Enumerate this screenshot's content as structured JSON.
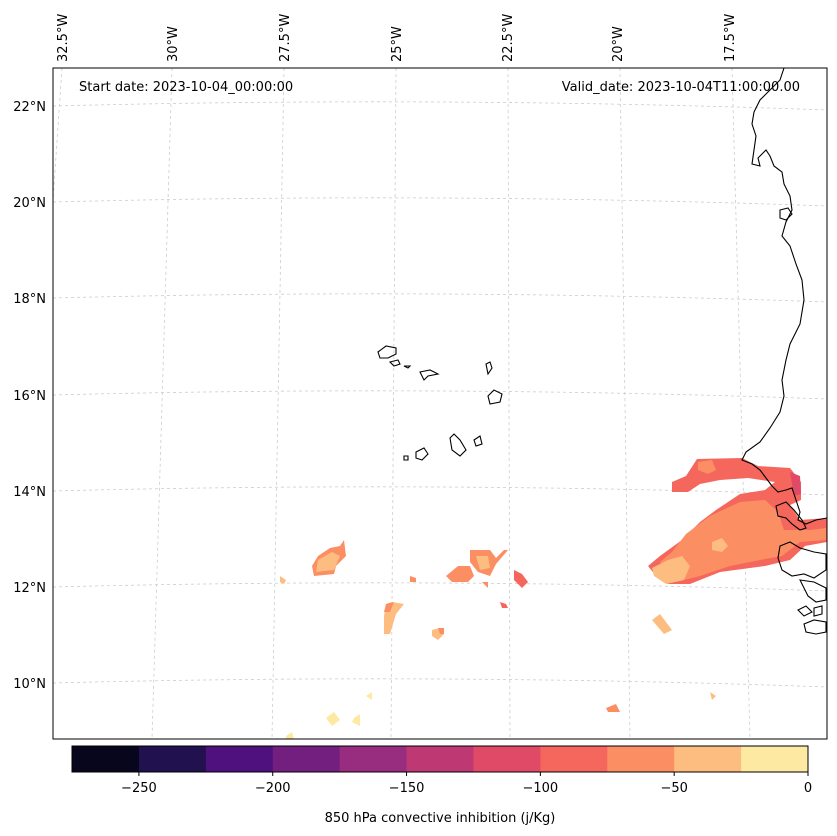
{
  "map": {
    "start_date": "Start date: 2023-10-04_00:00:00",
    "valid_date": "Valid_date: 2023-10-04T11:00:00.00",
    "lon_labels": [
      "32.5°W",
      "30°W",
      "27.5°W",
      "25°W",
      "22.5°W",
      "20°W",
      "17.5°W"
    ],
    "lat_labels": [
      "22°N",
      "20°N",
      "18°N",
      "16°N",
      "14°N",
      "12°N",
      "10°N"
    ],
    "colors": {
      "gridline": "#cccccc",
      "coastline": "#000000",
      "frame": "#000000"
    }
  },
  "colorbar": {
    "label": "850 hPa convective inhibition (j/Kg)",
    "tick_labels": [
      "−250",
      "−200",
      "−150",
      "−100",
      "−50",
      "0"
    ],
    "range": [
      -275,
      0
    ],
    "step": 25,
    "colors": [
      "#07061c",
      "#21114e",
      "#4e117d",
      "#731f80",
      "#982d80",
      "#be3974",
      "#e04a66",
      "#f5665c",
      "#fc8e64",
      "#febd80",
      "#fde9a2"
    ]
  },
  "cin_field": {
    "units": "j/Kg",
    "areas": [
      {
        "name": "west-african-coast-band",
        "value_range": [
          -100,
          -25
        ],
        "lon_range": [
          -19.5,
          -16.5
        ],
        "lat_range": [
          11.5,
          14.6
        ]
      },
      {
        "name": "central-patches",
        "value_range": [
          -100,
          -25
        ],
        "lon_range": [
          -27.5,
          -22.0
        ],
        "lat_range": [
          11.0,
          12.8
        ]
      },
      {
        "name": "south-scattered-cells",
        "value_range": [
          -50,
          0
        ],
        "lon_range": [
          -27.5,
          -17.5
        ],
        "lat_range": [
          9.0,
          11.5
        ]
      }
    ]
  }
}
